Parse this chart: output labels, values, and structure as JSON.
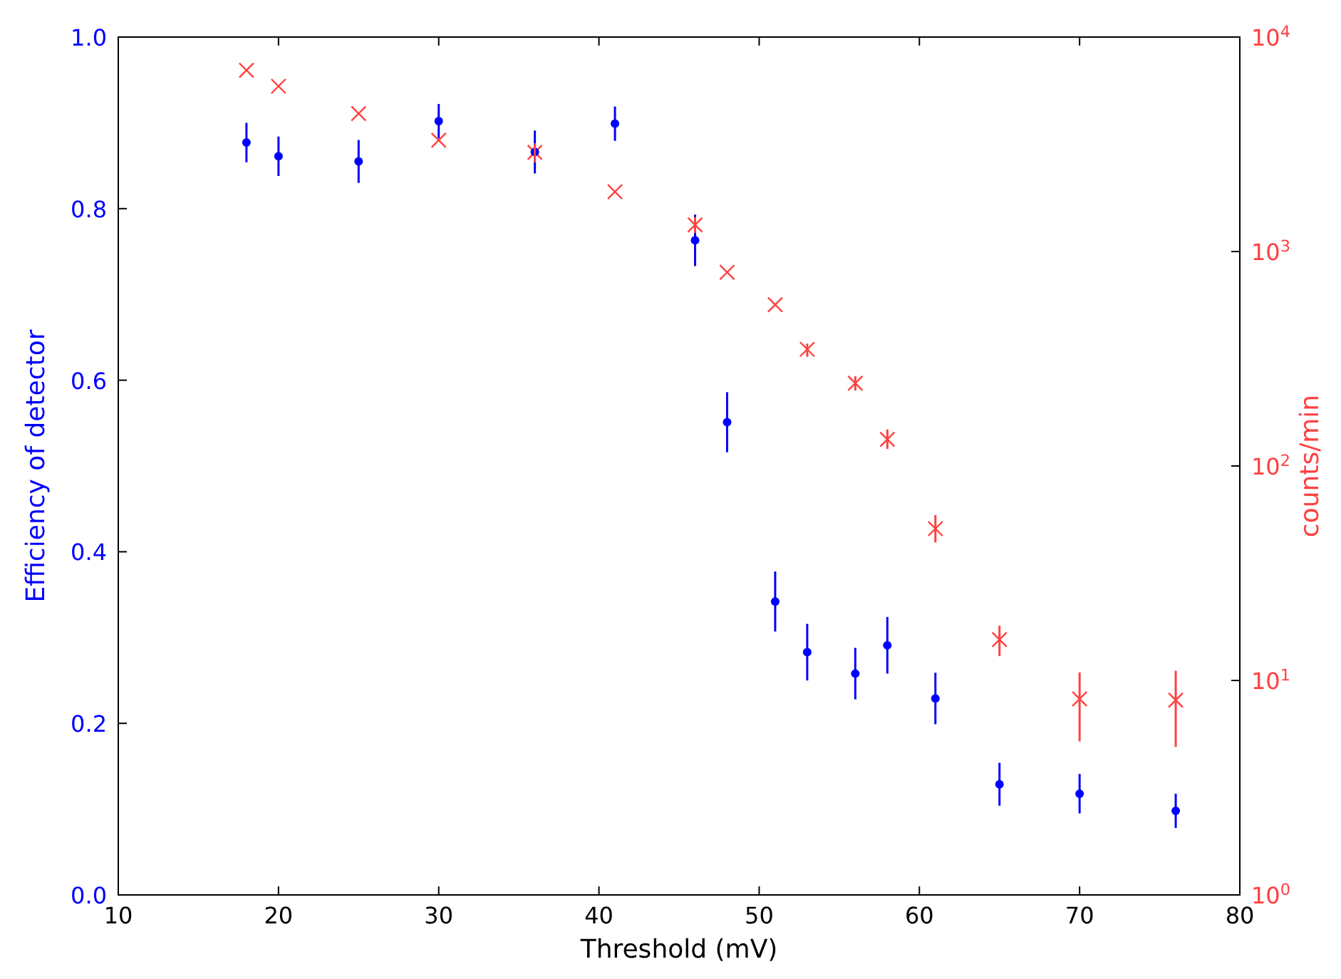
{
  "chart_data": {
    "type": "scatter",
    "xlabel": "Threshold (mV)",
    "ylabel": "Efficiency of detector",
    "y2label": "counts/min",
    "xlim": [
      10,
      80
    ],
    "xticks": [
      10,
      20,
      30,
      40,
      50,
      60,
      70,
      80
    ],
    "ylim": [
      0,
      1
    ],
    "yticks": [
      {
        "value": 0,
        "label": "0.0"
      },
      0.2,
      0.4,
      0.6,
      0.8,
      {
        "value": 1,
        "label": "1.0"
      }
    ],
    "y2lim": [
      1,
      10000
    ],
    "y2ticks": [
      {
        "value": 1,
        "label": "10$^{0}$"
      },
      {
        "value": 10,
        "label": "10$^{1}$"
      },
      {
        "value": 100,
        "label": "10$^{2}$"
      },
      {
        "value": 1000,
        "label": "10$^{3}$"
      },
      {
        "value": 10000,
        "label": "10$^{4}$"
      }
    ],
    "log": "y2",
    "grid": false,
    "x": [
      18,
      20,
      25,
      30,
      36,
      41,
      46,
      48,
      51,
      53,
      56,
      58,
      61,
      65,
      70,
      76
    ],
    "series": [
      {
        "color": "#0000ff",
        "axis": "y",
        "marker": "circle",
        "values": [
          0.877,
          0.861,
          0.855,
          0.902,
          0.866,
          0.899,
          0.763,
          0.551,
          0.342,
          0.283,
          0.258,
          0.291,
          0.229,
          0.129,
          0.118,
          0.098
        ],
        "errors": [
          0.023,
          0.023,
          0.025,
          0.02,
          0.025,
          0.02,
          0.03,
          0.035,
          0.035,
          0.033,
          0.03,
          0.033,
          0.03,
          0.025,
          0.023,
          0.02
        ]
      },
      {
        "color": "#ff4040",
        "axis": "y2",
        "marker": "cross",
        "values": [
          7000,
          5900,
          4400,
          3300,
          2900,
          1900,
          1330,
          800,
          565,
          350,
          243,
          133,
          51,
          15.5,
          8.2,
          8.1
        ],
        "errors": [
          null,
          null,
          null,
          null,
          [
            2600,
            3200
          ],
          null,
          [
            1220,
            1450
          ],
          null,
          null,
          [
            323,
            372
          ],
          [
            225,
            262
          ],
          [
            120,
            148
          ],
          [
            44,
            59
          ],
          [
            13,
            18
          ],
          [
            5.2,
            10.9
          ],
          [
            4.9,
            11.1
          ]
        ]
      }
    ]
  }
}
